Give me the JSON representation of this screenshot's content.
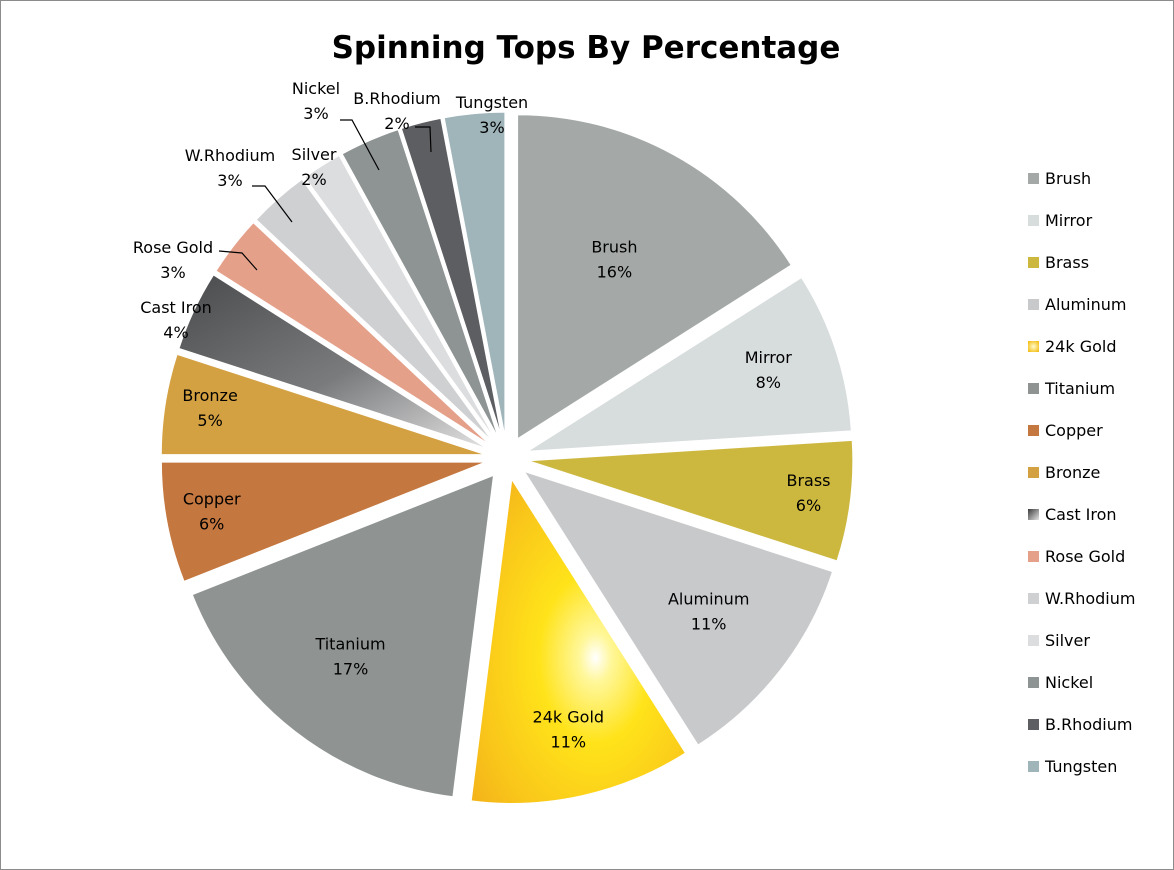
{
  "chart_data": {
    "type": "pie",
    "title": "Spinning Tops By Percentage",
    "categories": [
      "Brush",
      "Mirror",
      "Brass",
      "Aluminum",
      "24k Gold",
      "Titanium",
      "Copper",
      "Bronze",
      "Cast Iron",
      "Rose Gold",
      "W.Rhodium",
      "Silver",
      "Nickel",
      "B.Rhodium",
      "Tungsten"
    ],
    "values": [
      16,
      8,
      6,
      11,
      11,
      17,
      6,
      5,
      4,
      3,
      3,
      2,
      3,
      2,
      3
    ],
    "value_labels": [
      "16%",
      "8%",
      "6%",
      "11%",
      "11%",
      "17%",
      "6%",
      "5%",
      "4%",
      "3%",
      "3%",
      "2%",
      "3%",
      "2%",
      "3%"
    ],
    "colors": [
      "#a4a9a8",
      "#d7dcdd",
      "#cdb83f",
      "#c8c9cb",
      "#f7c21a",
      "#8f9493",
      "#c4773f",
      "#d3a042",
      "#6e6e70",
      "#e5a08a",
      "#cfd0d2",
      "#dcdddf",
      "#8e9393",
      "#5d5e61",
      "#9fb5ba"
    ],
    "exploded": true,
    "legend_position": "right"
  }
}
